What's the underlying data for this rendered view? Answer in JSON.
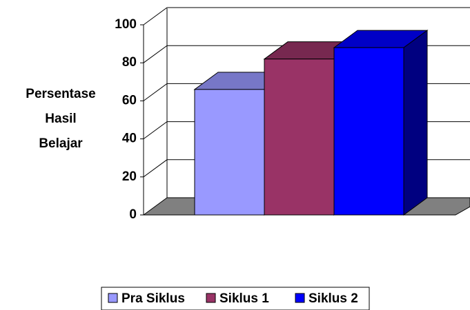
{
  "chart_data": {
    "type": "bar3d",
    "ylabel": "Persentase Hasil Belajar",
    "categories": [
      null
    ],
    "series": [
      {
        "name": "Pra Siklus",
        "color": "#9999ff",
        "values": [
          66
        ]
      },
      {
        "name": "Siklus 1",
        "color": "#993366",
        "values": [
          82
        ]
      },
      {
        "name": "Siklus 2",
        "color": "#0000ff",
        "values": [
          88
        ]
      }
    ],
    "ylim": [
      0,
      100
    ],
    "yticks": [
      0,
      20,
      40,
      60,
      80,
      100
    ],
    "grid": true,
    "legend": "bottom"
  }
}
